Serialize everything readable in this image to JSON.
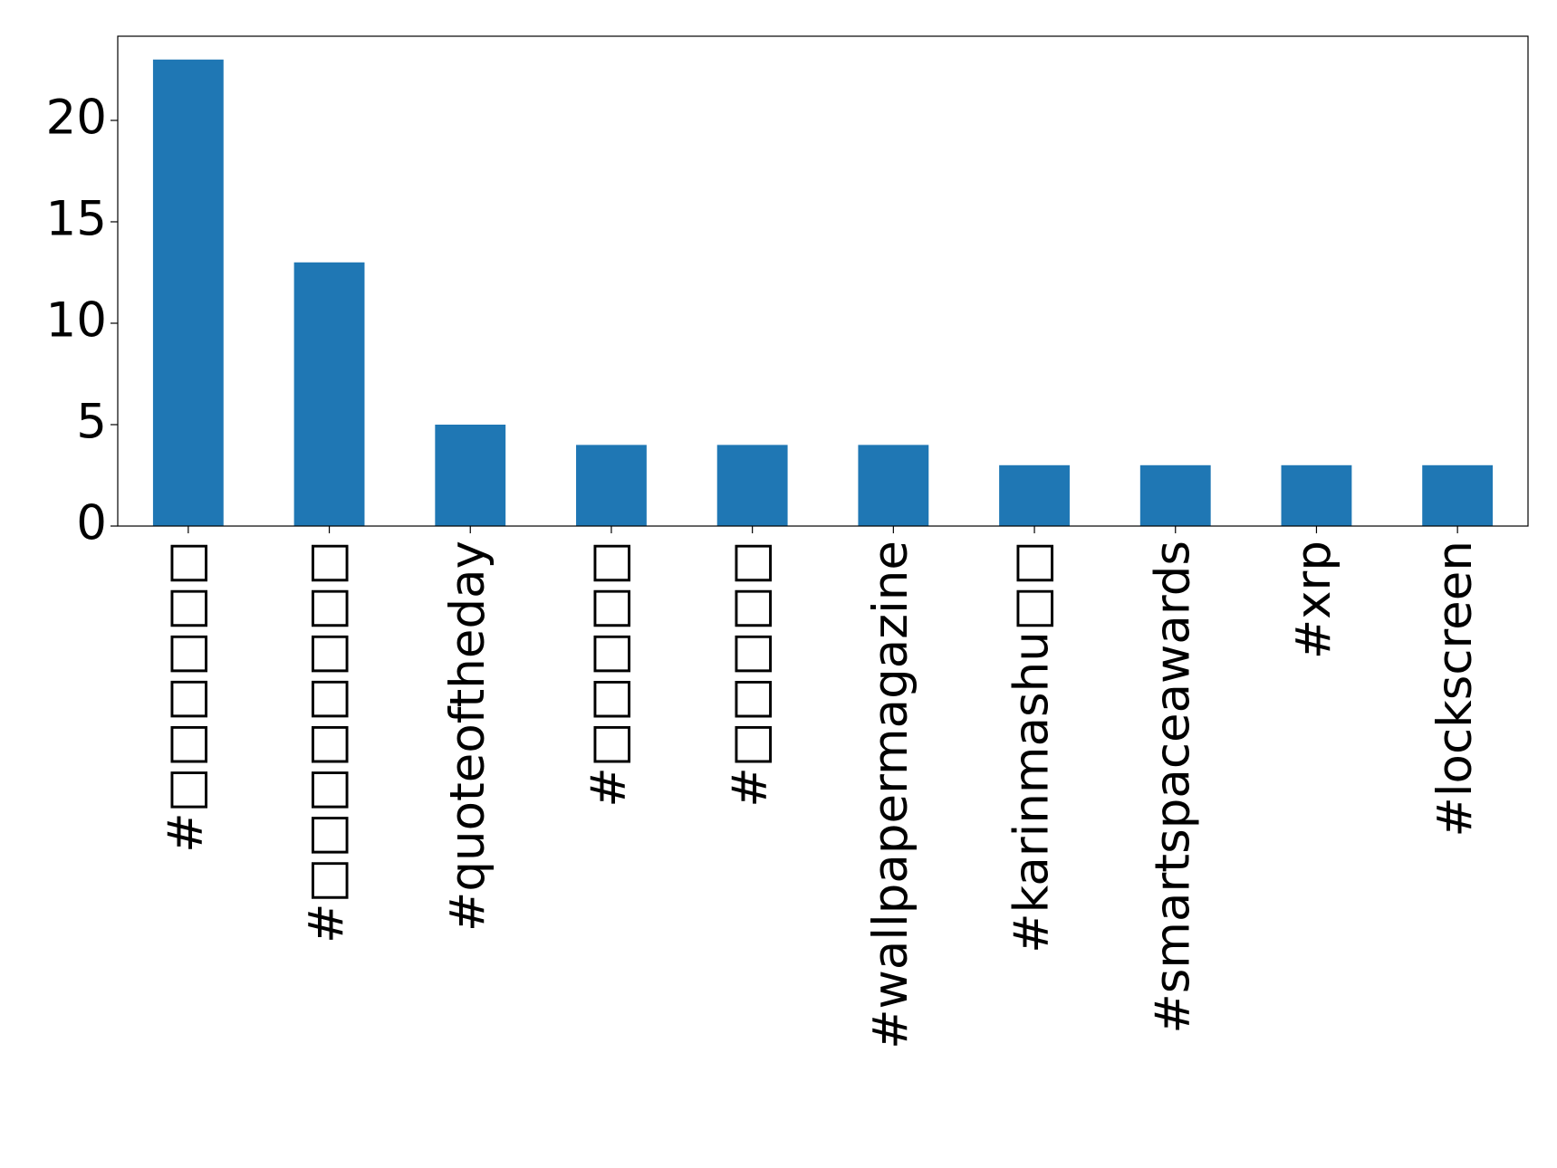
{
  "chart_data": {
    "type": "bar",
    "categories": [
      "#□□□□□□",
      "#□□□□□□□□",
      "#quoteoftheday",
      "#□□□□□",
      "#□□□□□",
      "#wallpapermagazine",
      "#karinmashu□□",
      "#smartspaceawards",
      "#xrp",
      "#lockscreen"
    ],
    "values": [
      23,
      13,
      5,
      4,
      4,
      4,
      3,
      3,
      3,
      3
    ],
    "color": "#1f77b4",
    "ylim": [
      0,
      24.15
    ],
    "yticks": [
      0,
      5,
      10,
      15,
      20
    ],
    "grid": false
  }
}
